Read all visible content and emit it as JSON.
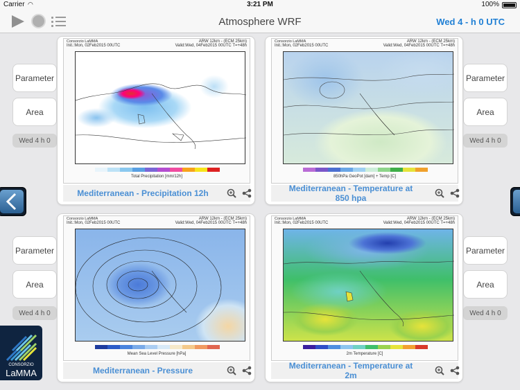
{
  "status": {
    "carrier": "Carrier",
    "wifi": "WiFi",
    "time": "3:21 PM",
    "battery": "100%"
  },
  "header": {
    "title": "Atmosphere WRF",
    "date": "Wed 4 - h 0 UTC"
  },
  "sides": {
    "parameter": "Parameter",
    "area": "Area",
    "wed": "Wed 4 h 0"
  },
  "maps": [
    {
      "hdr_left": "Consorzio LaMMA",
      "init": "Init.:Mon, 02Feb2015 00UTC",
      "model": "ARW 12km - (ECM 25km)",
      "valid": "Valid:Wed, 04Feb2015 00UTC",
      "step": "T=+48h",
      "caption": "Total Precipitation [mm/12h]",
      "label": "Mediterranean - Precipitation 12h"
    },
    {
      "hdr_left": "Consorzio LaMMA",
      "init": "Init.:Mon, 02Feb2015 00UTC",
      "model": "ARW 12km - (ECM 25km)",
      "valid": "Valid:Wed, 04Feb2015 00UTC",
      "step": "T=+48h",
      "caption": "850hPa GeoPot [dam] + Temp [C]",
      "label": "Mediterranean - Temperature at 850 hpa"
    },
    {
      "hdr_left": "Consorzio LaMMA",
      "init": "Init.:Mon, 02Feb2015 00UTC",
      "model": "ARW 12km - (ECM 25km)",
      "valid": "Valid:Wed, 04Feb2015 00UTC",
      "step": "T=+48h",
      "caption": "Mean Sea Level Pressure [hPa]",
      "label": "Mediterranean - Pressure"
    },
    {
      "hdr_left": "Consorzio LaMMA",
      "init": "Init.:Mon, 02Feb2015 00UTC",
      "model": "ARW 12km - (ECM 25km)",
      "valid": "Valid:Wed, 04Feb2015 00UTC",
      "step": "T=+48h",
      "caption": "2m Temperature [C]",
      "label": "Mediterranean - Temperature at 2m"
    }
  ],
  "logo": {
    "top": "CONSORZIO",
    "name": "LaMMA"
  },
  "icons": {
    "play": "play-icon",
    "record": "record-icon",
    "list": "list-icon",
    "zoom": "zoom-icon",
    "share": "share-icon",
    "prev": "chevron-left-icon",
    "next": "chevron-right-icon"
  }
}
